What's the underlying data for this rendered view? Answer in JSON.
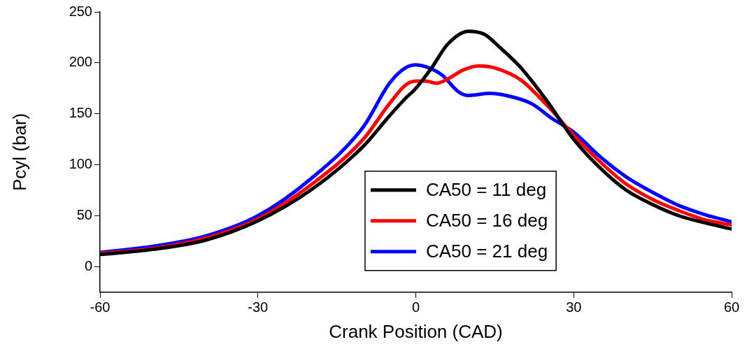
{
  "chart_data": {
    "type": "line",
    "xlabel": "Crank Position (CAD)",
    "ylabel": "Pcyl (bar)",
    "xlim": [
      -60,
      60
    ],
    "xticks": [
      -60,
      -30,
      0,
      30,
      60
    ],
    "ylim": [
      -25,
      250
    ],
    "yticks": [
      0,
      50,
      100,
      150,
      200,
      250
    ],
    "grid": false,
    "legend": "bottom",
    "marker": "none",
    "line_style": "solid",
    "series": [
      {
        "name": "CA50 = 11 deg",
        "color": "#000000",
        "x": [
          -60,
          -50,
          -40,
          -30,
          -20,
          -10,
          -5,
          -2,
          0,
          3,
          6,
          10,
          13,
          16,
          20,
          25,
          30,
          35,
          40,
          45,
          50,
          55,
          60
        ],
        "values": [
          12,
          17,
          26,
          45,
          75,
          118,
          148,
          165,
          175,
          195,
          218,
          231,
          228,
          215,
          195,
          162,
          125,
          97,
          75,
          61,
          50,
          43,
          37
        ]
      },
      {
        "name": "CA50 = 16 deg",
        "color": "#ff0000",
        "x": [
          -60,
          -50,
          -40,
          -30,
          -20,
          -10,
          -5,
          -2,
          0,
          2,
          4,
          6,
          9,
          12,
          15,
          20,
          25,
          30,
          35,
          40,
          45,
          50,
          55,
          60
        ],
        "values": [
          13,
          18,
          28,
          47,
          80,
          125,
          160,
          178,
          182,
          182,
          180,
          184,
          193,
          197,
          195,
          183,
          158,
          129,
          103,
          81,
          66,
          55,
          46,
          41
        ]
      },
      {
        "name": "CA50 = 21 deg",
        "color": "#0000ff",
        "x": [
          -60,
          -50,
          -40,
          -30,
          -20,
          -10,
          -5,
          -2,
          0,
          2,
          5,
          8,
          10,
          14,
          18,
          22,
          26,
          30,
          35,
          40,
          45,
          50,
          55,
          60
        ],
        "values": [
          14,
          20,
          30,
          50,
          86,
          137,
          180,
          195,
          198,
          196,
          188,
          172,
          168,
          170,
          167,
          160,
          145,
          132,
          108,
          88,
          73,
          60,
          51,
          44
        ]
      }
    ]
  }
}
